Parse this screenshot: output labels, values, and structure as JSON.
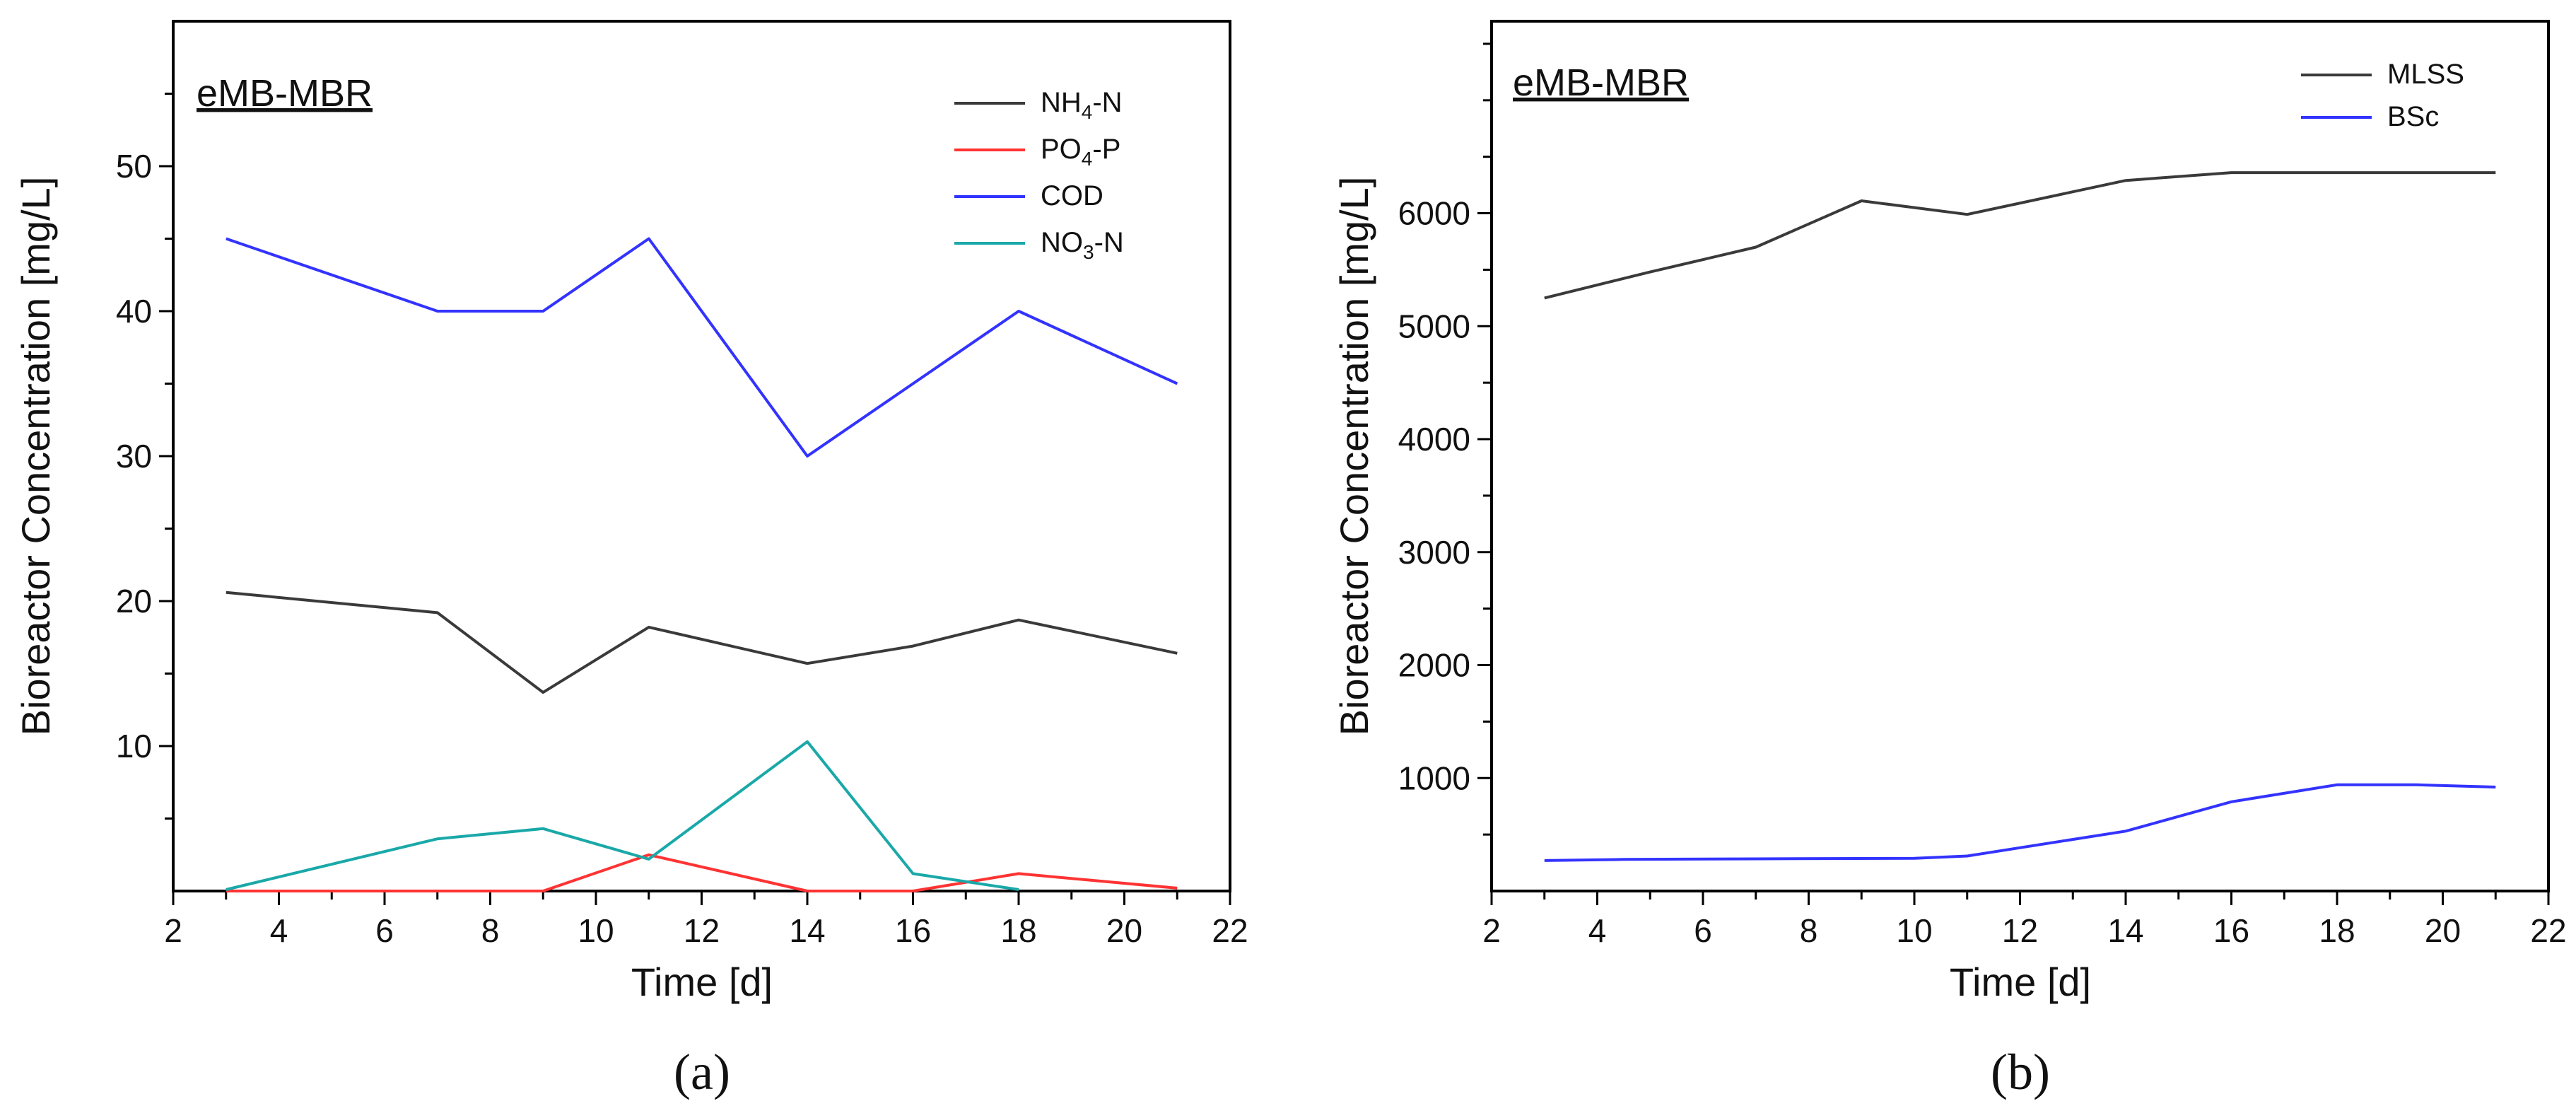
{
  "chart_data": [
    {
      "panel": "(a)",
      "type": "line",
      "title": "eMB-MBR",
      "xlabel": "Time [d]",
      "ylabel": "Bioreactor Concentration [mg/L]",
      "xlim": [
        2,
        22
      ],
      "ylim": [
        0,
        60
      ],
      "xticks": [
        2,
        4,
        6,
        8,
        10,
        12,
        14,
        16,
        18,
        20,
        22
      ],
      "yticks": [
        10,
        20,
        30,
        40,
        50
      ],
      "legend_position": "top-right",
      "series": [
        {
          "name": "NH4-N",
          "label_main": "NH",
          "label_sub": "4",
          "label_rest": "-N",
          "color": "#3a3a3a",
          "x": [
            3,
            7,
            9,
            11,
            14,
            16,
            18,
            21
          ],
          "y": [
            20.6,
            19.2,
            13.7,
            18.2,
            15.7,
            16.9,
            18.7,
            16.4
          ]
        },
        {
          "name": "PO4-P",
          "label_main": "PO",
          "label_sub": "4",
          "label_rest": "-P",
          "color": "#ff3333",
          "x": [
            3,
            7,
            9,
            11,
            14,
            16,
            18,
            21
          ],
          "y": [
            0,
            0,
            0,
            2.5,
            0,
            0,
            1.2,
            0.2
          ]
        },
        {
          "name": "COD",
          "label_main": "COD",
          "label_sub": "",
          "label_rest": "",
          "color": "#3333ff",
          "x": [
            3,
            7,
            9,
            11,
            14,
            16,
            18,
            21
          ],
          "y": [
            45,
            40,
            40,
            45,
            30,
            35,
            40,
            35
          ]
        },
        {
          "name": "NO3-N",
          "label_main": "NO",
          "label_sub": "3",
          "label_rest": "-N",
          "color": "#1aa8a8",
          "x": [
            3,
            7,
            9,
            11,
            14,
            16,
            18
          ],
          "y": [
            0.1,
            3.6,
            4.3,
            2.2,
            10.3,
            1.2,
            0.1
          ]
        }
      ]
    },
    {
      "panel": "(b)",
      "type": "line",
      "title": "eMB-MBR",
      "xlabel": "Time [d]",
      "ylabel": "Bioreactor Concentration [mg/L]",
      "xlim": [
        2,
        22
      ],
      "ylim": [
        0,
        7700
      ],
      "xticks": [
        2,
        4,
        6,
        8,
        10,
        12,
        14,
        16,
        18,
        20,
        22
      ],
      "yticks": [
        1000,
        2000,
        3000,
        4000,
        5000,
        6000
      ],
      "legend_position": "top-right",
      "series": [
        {
          "name": "MLSS",
          "label_main": "MLSS",
          "label_sub": "",
          "label_rest": "",
          "color": "#3a3a3a",
          "x": [
            3,
            5,
            7,
            9,
            11,
            14,
            16,
            18,
            21
          ],
          "y": [
            5250,
            5480,
            5700,
            6110,
            5990,
            6290,
            6360,
            6360,
            6360
          ]
        },
        {
          "name": "BSc",
          "label_main": "BSc",
          "label_sub": "",
          "label_rest": "",
          "color": "#3333ff",
          "x": [
            3,
            4.5,
            7,
            10,
            11,
            14,
            16,
            18,
            19.5,
            21
          ],
          "y": [
            270,
            280,
            285,
            290,
            310,
            530,
            790,
            940,
            940,
            920
          ]
        }
      ]
    }
  ]
}
